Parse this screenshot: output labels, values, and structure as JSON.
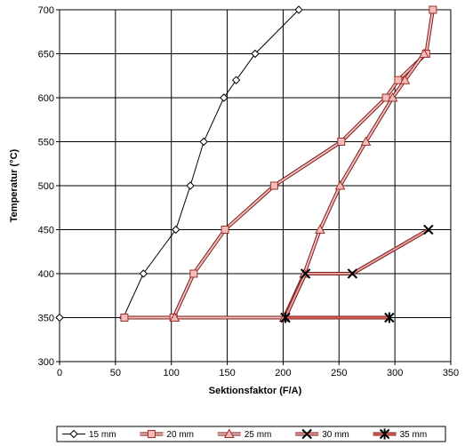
{
  "chart_data": {
    "type": "line",
    "xlabel": "Sektionsfaktor (F/A)",
    "ylabel": "Temperatur (°C)",
    "xlim": [
      0,
      350
    ],
    "ylim": [
      300,
      700
    ],
    "xticks": [
      0,
      50,
      100,
      150,
      200,
      250,
      300,
      350
    ],
    "yticks": [
      300,
      350,
      400,
      450,
      500,
      550,
      600,
      650,
      700
    ],
    "xtick_labels": [
      "0",
      "50",
      "100",
      "150",
      "200",
      "250",
      "300",
      "350"
    ],
    "ytick_labels": [
      "300",
      "350",
      "400",
      "450",
      "500",
      "550",
      "600",
      "650",
      "700"
    ],
    "grid": true,
    "legend_position": "bottom",
    "series": [
      {
        "name": "15 mm",
        "marker": "diamond",
        "color": "#000000",
        "fill": "#ffffff",
        "x": [
          0,
          57,
          75,
          104,
          117,
          129,
          147,
          158,
          175,
          214
        ],
        "y": [
          350,
          350,
          400,
          450,
          500,
          550,
          600,
          620,
          650,
          700
        ]
      },
      {
        "name": "20 mm",
        "marker": "square",
        "color": "#a0302a",
        "fill": "#f4bcbc",
        "x": [
          58,
          102,
          120,
          148,
          192,
          252,
          292,
          303,
          328,
          334
        ],
        "y": [
          350,
          350,
          400,
          450,
          500,
          550,
          600,
          620,
          650,
          700
        ]
      },
      {
        "name": "25 mm",
        "marker": "triangle",
        "color": "#a0302a",
        "fill": "#f4bcbc",
        "x": [
          103,
          201,
          219,
          233,
          251,
          274,
          298,
          309,
          326
        ],
        "y": [
          350,
          350,
          400,
          450,
          500,
          550,
          600,
          620,
          650
        ]
      },
      {
        "name": "30 mm",
        "marker": "x",
        "color": "#c0504d",
        "fill": "#e8a0a0",
        "x": [
          202,
          220,
          262,
          330
        ],
        "y": [
          350,
          400,
          400,
          450
        ]
      },
      {
        "name": "35 mm",
        "marker": "star",
        "color": "#b02020",
        "fill": "#e06060",
        "x": [
          202,
          295
        ],
        "y": [
          350,
          350
        ]
      }
    ]
  }
}
